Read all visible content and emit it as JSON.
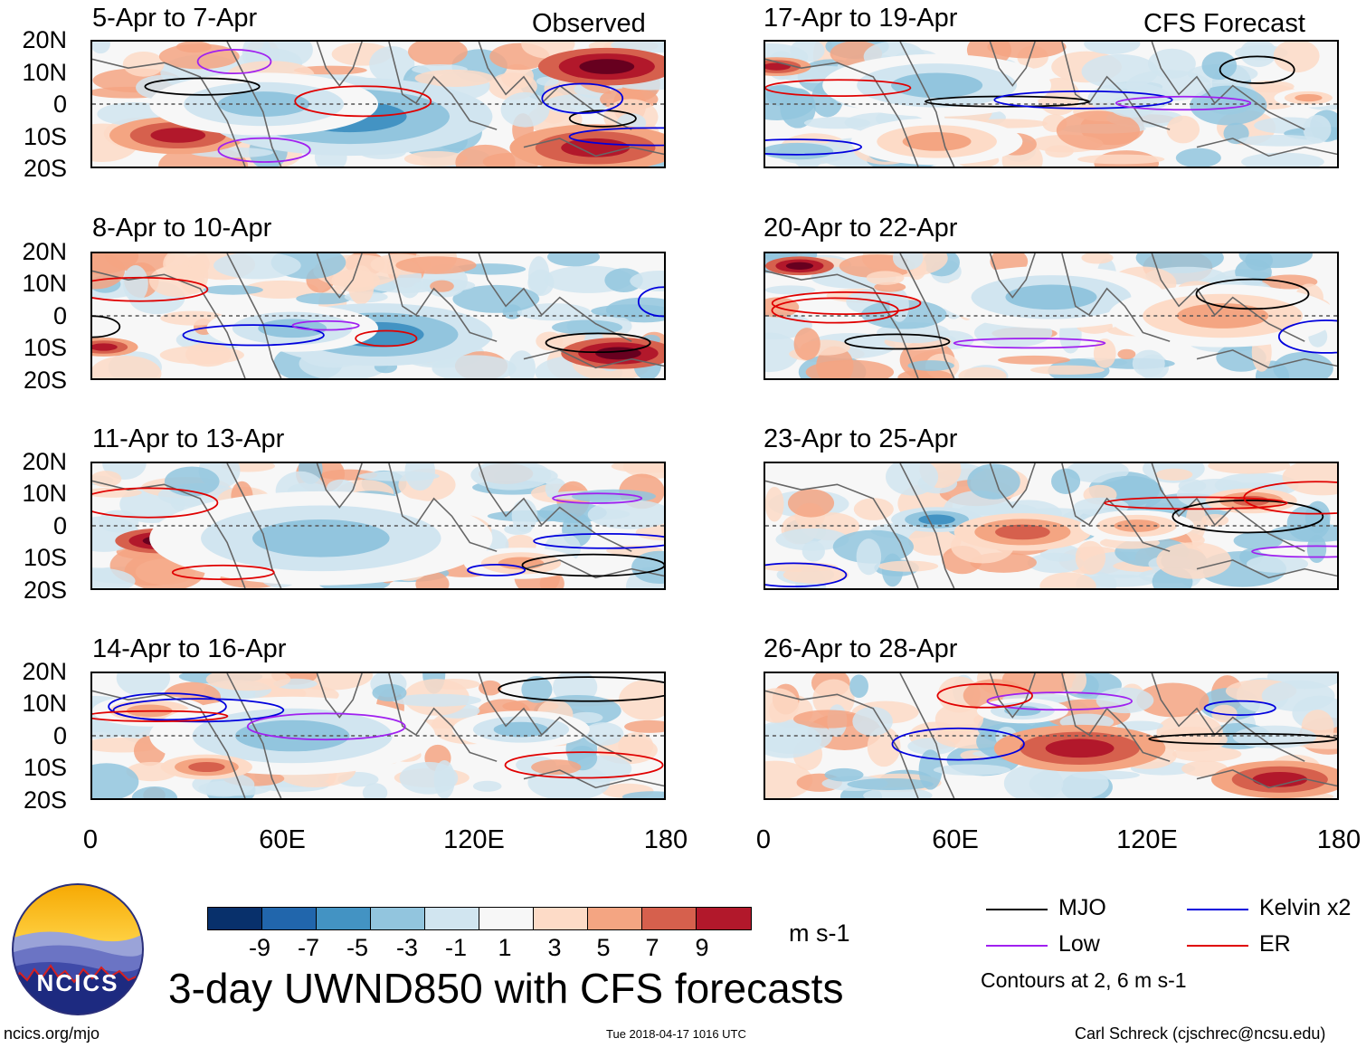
{
  "chart_data": {
    "type": "heatmap",
    "title": "3-day UWND850 with CFS forecasts",
    "units": "m s-1",
    "colorbar": {
      "ticks": [
        "-9",
        "-7",
        "-5",
        "-3",
        "-1",
        "1",
        "3",
        "5",
        "7",
        "9"
      ],
      "colors": [
        "#08306b",
        "#2166ac",
        "#4393c3",
        "#92c5de",
        "#d1e5f0",
        "#f7f7f7",
        "#fddbc7",
        "#f4a582",
        "#d6604d",
        "#b2182b",
        "#67001f"
      ]
    },
    "x_axis": {
      "ticks": [
        "0",
        "60E",
        "120E",
        "180"
      ],
      "range": [
        0,
        180
      ]
    },
    "y_axis": {
      "ticks": [
        "20N",
        "10N",
        "0",
        "10S",
        "20S"
      ],
      "range": [
        -20,
        20
      ]
    },
    "panels": [
      {
        "title": "5-Apr to 7-Apr",
        "label": "Observed",
        "column": "observed"
      },
      {
        "title": "8-Apr to 10-Apr",
        "label": "",
        "column": "observed"
      },
      {
        "title": "11-Apr to 13-Apr",
        "label": "",
        "column": "observed"
      },
      {
        "title": "14-Apr to 16-Apr",
        "label": "",
        "column": "observed"
      },
      {
        "title": "17-Apr to 19-Apr",
        "label": "CFS Forecast",
        "column": "forecast"
      },
      {
        "title": "20-Apr to 22-Apr",
        "label": "",
        "column": "forecast"
      },
      {
        "title": "23-Apr to 25-Apr",
        "label": "",
        "column": "forecast"
      },
      {
        "title": "26-Apr to 28-Apr",
        "label": "",
        "column": "forecast"
      }
    ],
    "legend": [
      {
        "name": "MJO",
        "color": "#000000"
      },
      {
        "name": "Kelvin x2",
        "color": "#0000dd"
      },
      {
        "name": "Low",
        "color": "#a020f0"
      },
      {
        "name": "ER",
        "color": "#e00000"
      }
    ],
    "contour_note": "Contours at 2, 6 m s-1"
  },
  "logo": {
    "text": "NCICS"
  },
  "footer": {
    "site": "ncics.org/mjo",
    "timestamp": "Tue 2018-04-17 1016 UTC",
    "author": "Carl Schreck (cjschrec@ncsu.edu)"
  }
}
